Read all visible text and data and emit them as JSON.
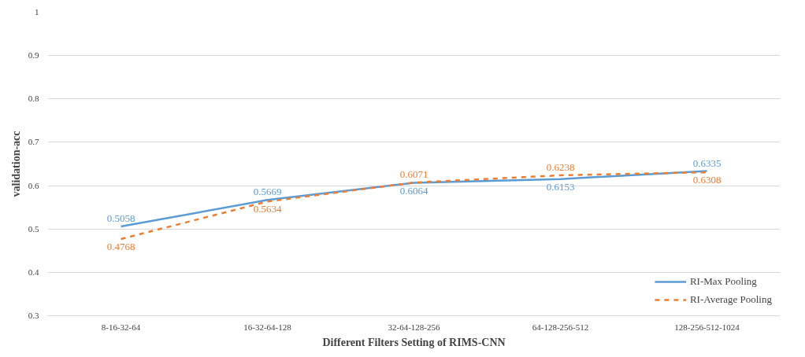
{
  "chart_data": {
    "type": "line",
    "xlabel": "Different Filters Setting of RIMS-CNN",
    "ylabel": "validation-acc",
    "categories": [
      "8-16-32-64",
      "16-32-64-128",
      "32-64-128-256",
      "64-128-256-512",
      "128-256-512-1024"
    ],
    "series": [
      {
        "name": "RI-Max Pooling",
        "color": "#5b9bd5",
        "line_style": "solid",
        "values": [
          0.5058,
          0.5669,
          0.6064,
          0.6153,
          0.6335
        ]
      },
      {
        "name": "RI-Average Pooling",
        "color": "#ed7d31",
        "line_style": "dashed",
        "values": [
          0.4768,
          0.5634,
          0.6071,
          0.6238,
          0.6308
        ]
      }
    ],
    "ylim": [
      0.3,
      1
    ],
    "yticks": [
      0.3,
      0.4,
      0.5,
      0.6,
      0.7,
      0.8,
      0.9,
      1
    ],
    "grid": "y",
    "legend": "bottom right",
    "data_labels": true,
    "marker": "none"
  }
}
